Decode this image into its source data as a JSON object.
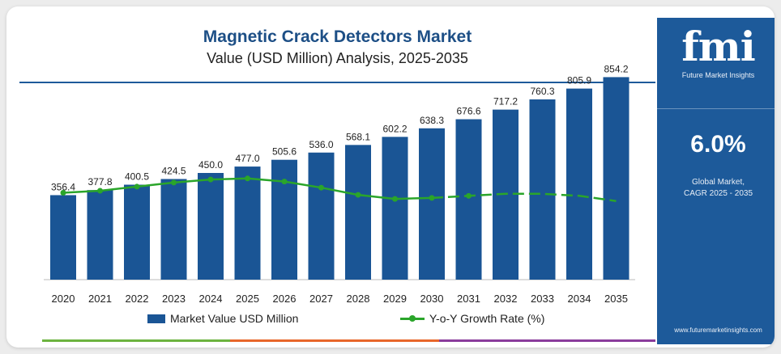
{
  "header": {
    "title": "Magnetic Crack Detectors Market",
    "subtitle": "Value (USD Million) Analysis, 2025-2035"
  },
  "side_panel": {
    "logo_text": "fmi",
    "logo_sub": "Future Market Insights",
    "cagr_value": "6.0%",
    "cagr_label_1": "Global Market,",
    "cagr_label_2": "CAGR 2025 - 2035",
    "url": "www.futuremarketinsights.com"
  },
  "legend": {
    "bar_label": "Market Value USD Million",
    "line_label": "Y-o-Y Growth Rate (%)"
  },
  "colors": {
    "bar": "#1a5595",
    "line": "#2aa52a",
    "panel": "#1d5a9a",
    "title": "#1d4f86",
    "bottom_bar": [
      "#6cb33f",
      "#e8672b",
      "#8a3c9c"
    ]
  },
  "chart_data": {
    "type": "bar",
    "title": "Magnetic Crack Detectors Market",
    "subtitle": "Value (USD Million) Analysis, 2025-2035",
    "categories": [
      "2020",
      "2021",
      "2022",
      "2023",
      "2024",
      "2025",
      "2026",
      "2027",
      "2028",
      "2029",
      "2030",
      "2031",
      "2032",
      "2033",
      "2034",
      "2035"
    ],
    "series": [
      {
        "name": "Market Value USD Million",
        "type": "bar",
        "values": [
          356.4,
          377.8,
          400.5,
          424.5,
          450.0,
          477.0,
          505.6,
          536.0,
          568.1,
          602.2,
          638.3,
          676.6,
          717.2,
          760.3,
          805.9,
          854.2
        ],
        "labels": [
          "356.4",
          "377.8",
          "400.5",
          "424.5",
          "450.0",
          "477.0",
          "505.6",
          "536.0",
          "568.1",
          "602.2",
          "638.3",
          "676.6",
          "717.2",
          "760.3",
          "805.9",
          "854.2"
        ]
      },
      {
        "name": "Y-o-Y Growth Rate (%)",
        "type": "line",
        "values": [
          5.8,
          6.0,
          6.4,
          6.8,
          7.1,
          7.2,
          6.9,
          6.3,
          5.6,
          5.2,
          5.3,
          5.5,
          5.7,
          5.7,
          5.5,
          5.0
        ],
        "dashed_from_index": 10
      }
    ],
    "ylim": [
      0,
      900
    ],
    "line_ylim": [
      0,
      15
    ],
    "legend_position": "bottom",
    "grid": false
  }
}
